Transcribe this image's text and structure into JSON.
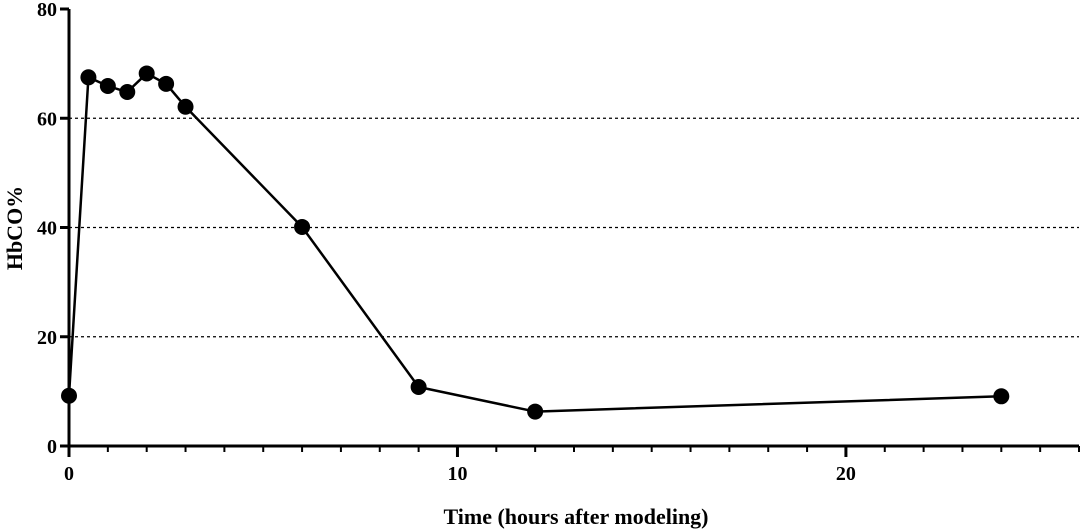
{
  "chart_data": {
    "type": "line",
    "xlabel": "Time (hours after modeling)",
    "ylabel": "HbCO%",
    "xlim": [
      0,
      26
    ],
    "ylim": [
      0,
      80
    ],
    "x_major_ticks": [
      0,
      10,
      20
    ],
    "x_minor_step": 1,
    "y_ticks": [
      0,
      20,
      40,
      60,
      80
    ],
    "y_gridlines": [
      20,
      40,
      60
    ],
    "grid": "horizontal dashed",
    "legend": "none",
    "colors": {
      "line": "#000000",
      "marker": "#000000",
      "grid": "#000000"
    },
    "series": [
      {
        "marker": "filled-circle",
        "points": [
          {
            "x": 0,
            "y": 9.2
          },
          {
            "x": 0.5,
            "y": 67.5
          },
          {
            "x": 1,
            "y": 65.9
          },
          {
            "x": 1.5,
            "y": 64.8
          },
          {
            "x": 2,
            "y": 68.2
          },
          {
            "x": 2.5,
            "y": 66.3
          },
          {
            "x": 3,
            "y": 62.1
          },
          {
            "x": 6,
            "y": 40.1
          },
          {
            "x": 9,
            "y": 10.8
          },
          {
            "x": 12,
            "y": 6.3
          },
          {
            "x": 24,
            "y": 9.1
          }
        ]
      }
    ]
  }
}
